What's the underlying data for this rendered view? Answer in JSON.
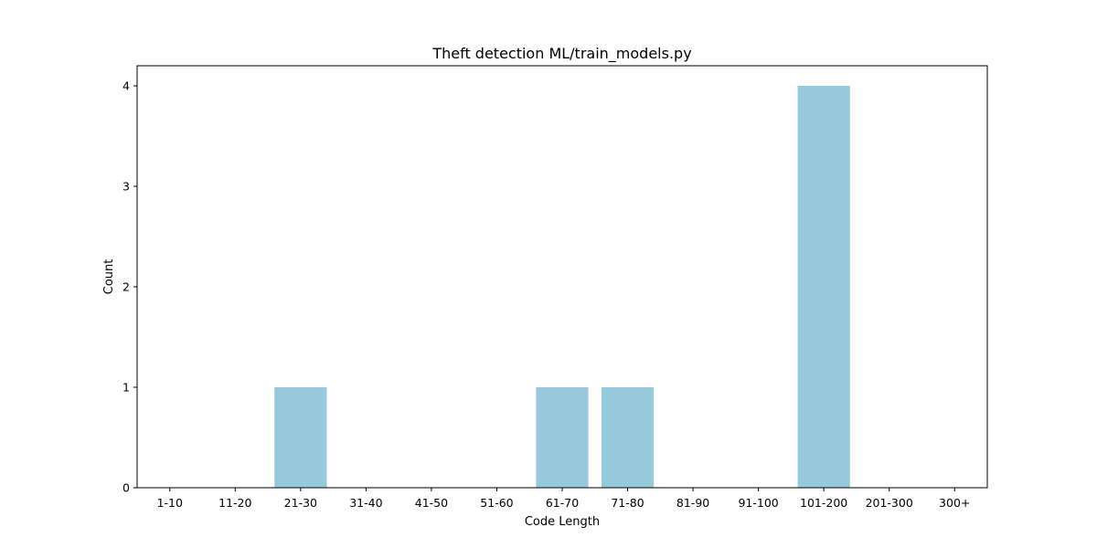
{
  "chart_data": {
    "type": "bar",
    "title": "Theft detection ML/train_models.py",
    "xlabel": "Code Length",
    "ylabel": "Count",
    "categories": [
      "1-10",
      "11-20",
      "21-30",
      "31-40",
      "41-50",
      "51-60",
      "61-70",
      "71-80",
      "81-90",
      "91-100",
      "101-200",
      "201-300",
      "300+"
    ],
    "values": [
      0,
      0,
      1,
      0,
      0,
      0,
      1,
      1,
      0,
      0,
      4,
      0,
      0
    ],
    "yticks": [
      0,
      1,
      2,
      3,
      4
    ],
    "ylim": [
      0,
      4.2
    ],
    "grid": false,
    "legend": "none",
    "bar_color": "#96c9dc"
  }
}
